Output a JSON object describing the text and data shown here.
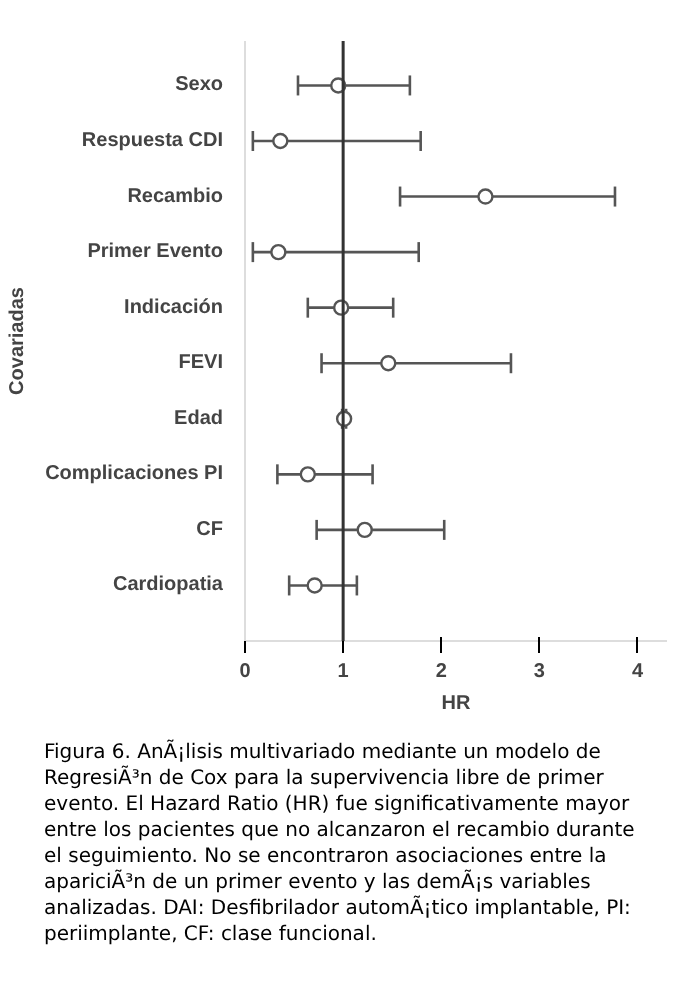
{
  "chart_data": {
    "type": "scatter",
    "orientation": "horizontal",
    "xlabel": "HR",
    "ylabel": "Covariadas",
    "categories": [
      "Sexo",
      "Respuesta CDI",
      "Recambio",
      "Primer Evento",
      "Indicación",
      "FEVI",
      "Edad",
      "Complicaciones PI",
      "CF",
      "Cardiopatia"
    ],
    "values": [
      0.95,
      0.36,
      2.45,
      0.34,
      0.98,
      1.46,
      1.01,
      0.64,
      1.22,
      0.71
    ],
    "errors": [
      [
        0.54,
        1.68
      ],
      [
        0.08,
        1.79
      ],
      [
        1.58,
        3.77
      ],
      [
        0.08,
        1.77
      ],
      [
        0.64,
        1.51
      ],
      [
        0.78,
        2.71
      ],
      [
        0.99,
        1.03
      ],
      [
        0.33,
        1.3
      ],
      [
        0.73,
        2.03
      ],
      [
        0.45,
        1.14
      ]
    ],
    "color": "#555555",
    "marker": "circle",
    "grid": false,
    "xlim": [
      0,
      4.3
    ],
    "xticks": [
      0,
      1,
      2,
      3,
      4
    ],
    "ref_lines": [
      {
        "axis": "x",
        "value": 1,
        "color": "#333333"
      }
    ],
    "annotations": [
      "Figura 6. AnÃ¡lisis multivariado mediante un modelo de RegresiÃ³n de Cox para la supervivencia libre de primer evento. El Hazard Ratio (HR) fue significativamente mayor entre los pacientes que no alcanzaron el recambio durante el seguimiento. No se encontraron asociaciones entre la apariciÃ³n de un primer evento y las demÃ¡s variables analizadas. DAI: Desfibrilador automÃ¡tico implantable, PI: periimplante, CF: clase funcional."
    ]
  }
}
